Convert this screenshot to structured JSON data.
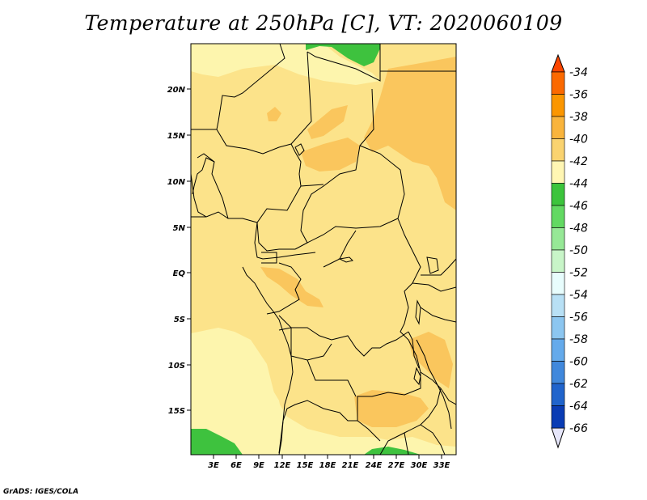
{
  "title": "Temperature at 250hPa [C], VT: 2020060109",
  "credit": "GrADS: IGES/COLA",
  "colors": {
    "bg": "#fdf5ad",
    "c40_42": "#fce38a",
    "c38_40": "#fac65d",
    "c36_38": "#f9a132",
    "c44_46": "#3ec23e",
    "borders": "#000000"
  },
  "axes": {
    "lat_labels": [
      "20N",
      "15N",
      "10N",
      "5N",
      "EQ",
      "5S",
      "10S",
      "15S"
    ],
    "lon_labels": [
      "3E",
      "6E",
      "9E",
      "12E",
      "15E",
      "18E",
      "21E",
      "24E",
      "27E",
      "30E",
      "33E"
    ]
  },
  "colorbar": {
    "labels": [
      "-34",
      "-36",
      "-38",
      "-40",
      "-42",
      "-44",
      "-46",
      "-48",
      "-50",
      "-52",
      "-54",
      "-56",
      "-58",
      "-60",
      "-62",
      "-64",
      "-66"
    ],
    "colors": [
      "#fb6900",
      "#fb9600",
      "#f9b43c",
      "#fad370",
      "#fff6b3",
      "#3cc43c",
      "#62d962",
      "#96e896",
      "#c8f5c8",
      "#e8fdfd",
      "#b8e0f5",
      "#8cc6f0",
      "#64aaeb",
      "#4088dc",
      "#2064cc",
      "#0a3cb4",
      "#0a147a"
    ],
    "over_color": "#fb4500",
    "under_color": "#e6e6fa"
  }
}
